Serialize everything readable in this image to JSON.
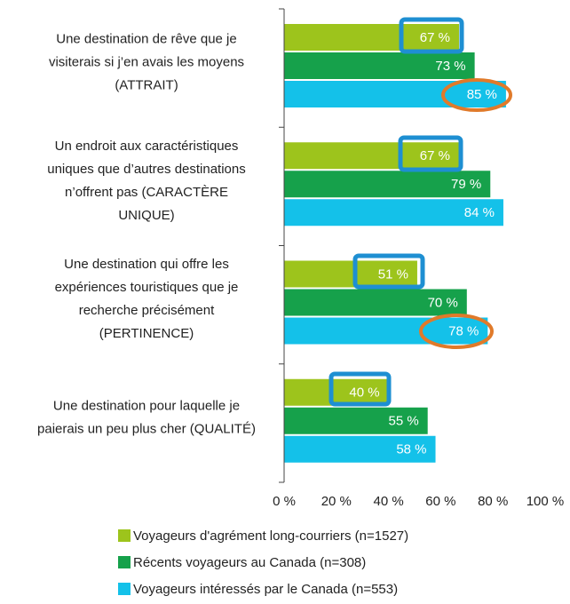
{
  "chart_data": {
    "type": "bar",
    "orientation": "horizontal",
    "categories": [
      [
        "Une destination de rêve que je",
        "visiterais si j’en avais les moyens",
        "(ATTRAIT)"
      ],
      [
        "Un endroit aux caractéristiques",
        "uniques que d’autres destinations",
        "n’offrent pas (CARACTÈRE",
        "UNIQUE)"
      ],
      [
        "Une destination qui offre les",
        "expériences touristiques que je",
        "recherche précisément",
        "(PERTINENCE)"
      ],
      [
        "Une destination pour laquelle je",
        "paierais un peu plus cher (QUALITÉ)"
      ]
    ],
    "series": [
      {
        "name": "Voyageurs d'agrément long-courriers (n=1527)",
        "color": "#9dc41c",
        "values": [
          67,
          67,
          51,
          40
        ],
        "value_labels": [
          "67 %",
          "67 %",
          "51 %",
          "40 %"
        ]
      },
      {
        "name": "Récents voyageurs au Canada (n=308)",
        "color": "#16a14b",
        "values": [
          73,
          79,
          70,
          55
        ],
        "value_labels": [
          "73 %",
          "79 %",
          "70 %",
          "55 %"
        ]
      },
      {
        "name": "Voyageurs intéressés par le Canada (n=553)",
        "color": "#14c1e9",
        "values": [
          85,
          84,
          78,
          58
        ],
        "value_labels": [
          "85 %",
          "84 %",
          "78 %",
          "58 %"
        ]
      }
    ],
    "xlim": [
      0,
      100
    ],
    "xticks": [
      {
        "value": 0,
        "label": "0 %"
      },
      {
        "value": 20,
        "label": "20 %"
      },
      {
        "value": 40,
        "label": "40 %"
      },
      {
        "value": 60,
        "label": "60 %"
      },
      {
        "value": 80,
        "label": "80 %"
      },
      {
        "value": 100,
        "label": "100 %"
      }
    ]
  }
}
